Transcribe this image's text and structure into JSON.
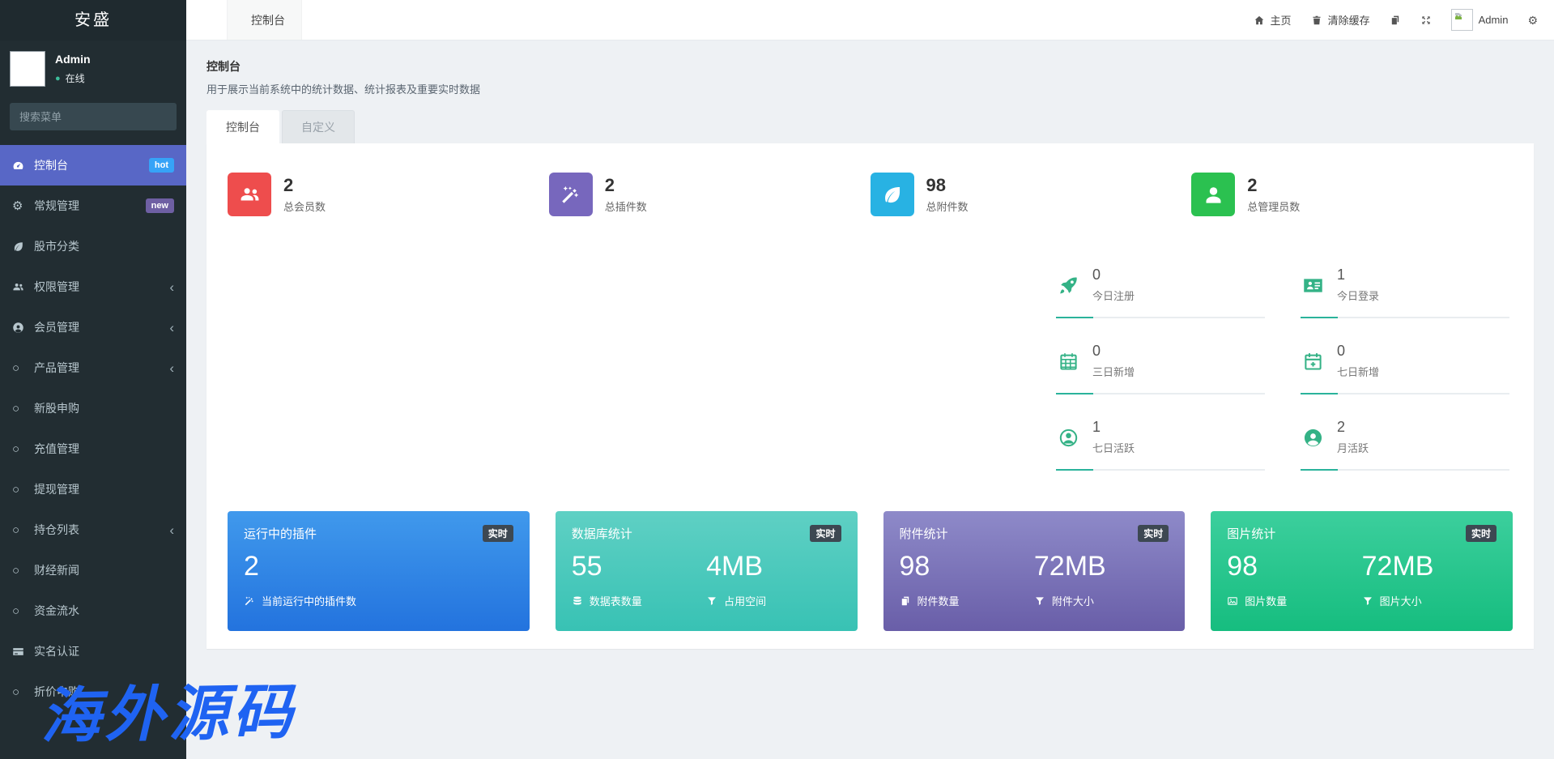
{
  "sidebar": {
    "logo": "安盛",
    "user": {
      "name": "Admin",
      "status": "在线",
      "status_color": "#3dbd9b"
    },
    "search_placeholder": "搜索菜单",
    "active_bg": "#5867c6",
    "menu": [
      {
        "label": "控制台",
        "icon": "tachometer",
        "badge": "hot",
        "badge_color": "#36a3f7",
        "active": true
      },
      {
        "label": "常规管理",
        "icon": "cogs",
        "badge": "new",
        "badge_color": "#6e5fa3"
      },
      {
        "label": "股市分类",
        "icon": "leaf"
      },
      {
        "label": "权限管理",
        "icon": "users",
        "children": true
      },
      {
        "label": "会员管理",
        "icon": "user-circle",
        "children": true
      },
      {
        "label": "产品管理",
        "icon": "circle-o",
        "children": true
      },
      {
        "label": "新股申购",
        "icon": "circle-o"
      },
      {
        "label": "充值管理",
        "icon": "circle-o"
      },
      {
        "label": "提现管理",
        "icon": "circle-o"
      },
      {
        "label": "持仓列表",
        "icon": "circle-o",
        "children": true
      },
      {
        "label": "财经新闻",
        "icon": "circle-o"
      },
      {
        "label": "资金流水",
        "icon": "circle-o"
      },
      {
        "label": "实名认证",
        "icon": "credit-card"
      },
      {
        "label": "折价申购",
        "icon": "circle-o"
      }
    ]
  },
  "topbar": {
    "tab_label": "控制台",
    "tab_icon": "tachometer",
    "right": [
      {
        "name": "home-link",
        "type": "link",
        "icon": "home",
        "label": "主页"
      },
      {
        "name": "clear-cache-link",
        "type": "link",
        "icon": "trash",
        "label": "清除缓存"
      },
      {
        "name": "copy-button",
        "type": "button",
        "icon": "files"
      },
      {
        "name": "fullscreen-button",
        "type": "button",
        "icon": "expand"
      },
      {
        "name": "user-menu",
        "type": "avatar",
        "icon": "broken-image",
        "label": "Admin"
      },
      {
        "name": "settings-button",
        "type": "button",
        "icon": "cogs"
      }
    ]
  },
  "main": {
    "title": "控制台",
    "subtitle": "用于展示当前系统中的统计数据、统计报表及重要实时数据",
    "tabs": [
      {
        "label": "控制台",
        "active": true
      },
      {
        "label": "自定义",
        "active": false
      }
    ],
    "stats": [
      {
        "value": "2",
        "label": "总会员数",
        "icon": "users",
        "color": "#ee4d4d"
      },
      {
        "value": "2",
        "label": "总插件数",
        "icon": "magic",
        "color": "#7767bd"
      },
      {
        "value": "98",
        "label": "总附件数",
        "icon": "leaf",
        "color": "#28b2e3"
      },
      {
        "value": "2",
        "label": "总管理员数",
        "icon": "user",
        "color": "#2bc150"
      }
    ],
    "mini_accent": "#34b286",
    "mini_line_color": "#2ab39b",
    "mini_stats": [
      {
        "value": "0",
        "label": "今日注册",
        "icon": "rocket"
      },
      {
        "value": "1",
        "label": "今日登录",
        "icon": "id-card"
      },
      {
        "value": "0",
        "label": "三日新增",
        "icon": "calendar"
      },
      {
        "value": "0",
        "label": "七日新增",
        "icon": "calendar-plus"
      },
      {
        "value": "1",
        "label": "七日活跃",
        "icon": "user-circle-o"
      },
      {
        "value": "2",
        "label": "月活跃",
        "icon": "user-circle-filled"
      }
    ],
    "cards": [
      {
        "title": "运行中的插件",
        "badge": "实时",
        "gradient": [
          "#4099ec",
          "#2373de"
        ],
        "metrics": [
          {
            "value": "2",
            "label": "当前运行中的插件数",
            "icon": "magic"
          }
        ]
      },
      {
        "title": "数据库统计",
        "badge": "实时",
        "gradient": [
          "#5fd0c4",
          "#38c2b4"
        ],
        "metrics": [
          {
            "value": "55",
            "label": "数据表数量",
            "icon": "database"
          },
          {
            "value": "4MB",
            "label": "占用空间",
            "icon": "filter"
          }
        ]
      },
      {
        "title": "附件统计",
        "badge": "实时",
        "gradient": [
          "#8e8ac9",
          "#695ea8"
        ],
        "metrics": [
          {
            "value": "98",
            "label": "附件数量",
            "icon": "copy"
          },
          {
            "value": "72MB",
            "label": "附件大小",
            "icon": "filter"
          }
        ]
      },
      {
        "title": "图片统计",
        "badge": "实时",
        "gradient": [
          "#3ccf9d",
          "#16bd7f"
        ],
        "metrics": [
          {
            "value": "98",
            "label": "图片数量",
            "icon": "image"
          },
          {
            "value": "72MB",
            "label": "图片大小",
            "icon": "filter"
          }
        ]
      }
    ]
  },
  "watermark": {
    "text": "海外源码",
    "color": "#1f63f2"
  }
}
